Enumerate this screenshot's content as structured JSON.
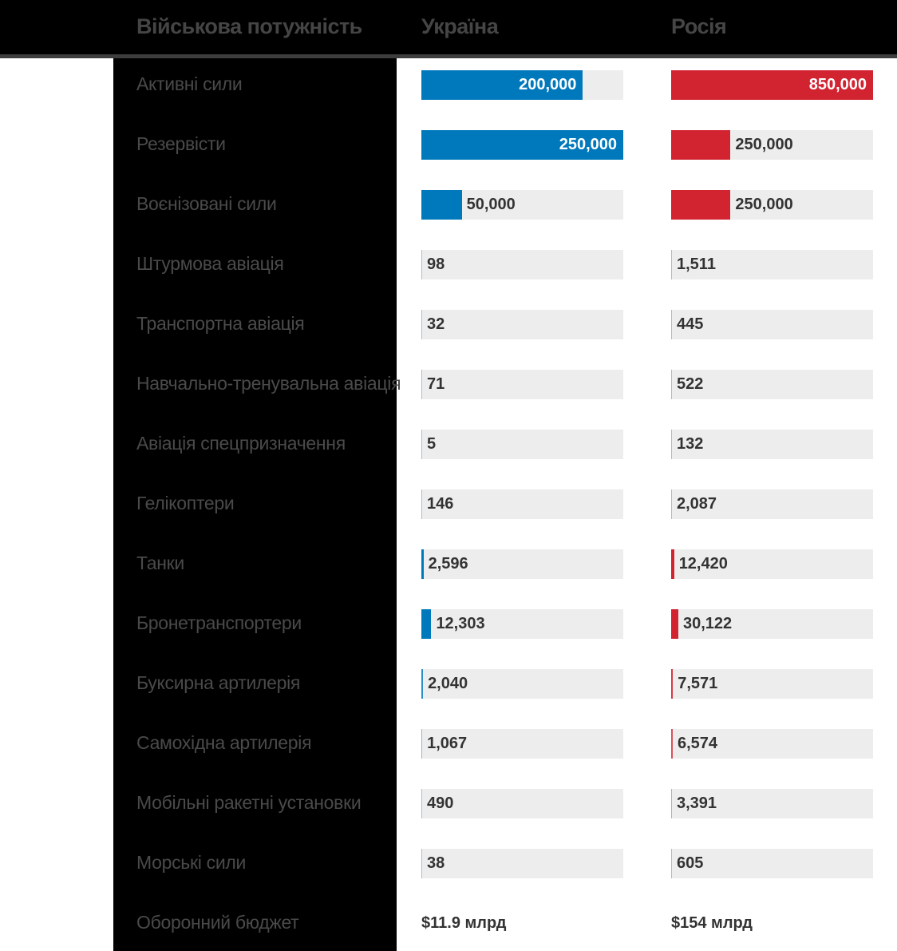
{
  "chart_data": {
    "type": "bar",
    "title": "Військова потужність",
    "categories": [
      "Активні сили",
      "Резервісти",
      "Воєнізовані сили",
      "Штурмова авіація",
      "Транспортна авіація",
      "Навчально-тренувальна авіація",
      "Авіація спецпризначення",
      "Гелікоптери",
      "Танки",
      "Бронетранспортери",
      "Буксирна артилерія",
      "Самохідна артилерія",
      "Мобільні ракетні установки",
      "Морські сили"
    ],
    "series": [
      {
        "name": "Україна",
        "color": "#0079bc",
        "max": 250000,
        "values": [
          200000,
          250000,
          50000,
          98,
          32,
          71,
          5,
          146,
          2596,
          12303,
          2040,
          1067,
          490,
          38
        ],
        "labels": [
          "200,000",
          "250,000",
          "50,000",
          "98",
          "32",
          "71",
          "5",
          "146",
          "2,596",
          "12,303",
          "2,040",
          "1,067",
          "490",
          "38"
        ]
      },
      {
        "name": "Росія",
        "color": "#d22331",
        "max": 850000,
        "values": [
          850000,
          250000,
          250000,
          1511,
          445,
          522,
          132,
          2087,
          12420,
          30122,
          7571,
          6574,
          3391,
          605
        ],
        "labels": [
          "850,000",
          "250,000",
          "250,000",
          "1,511",
          "445",
          "522",
          "132",
          "2,087",
          "12,420",
          "30,122",
          "7,571",
          "6,574",
          "3,391",
          "605"
        ]
      }
    ],
    "budget": {
      "label": "Оборонний бюджет",
      "ukraine": "$11.9 млрд",
      "russia": "$154 млрд"
    },
    "track_color": "#ededed"
  }
}
